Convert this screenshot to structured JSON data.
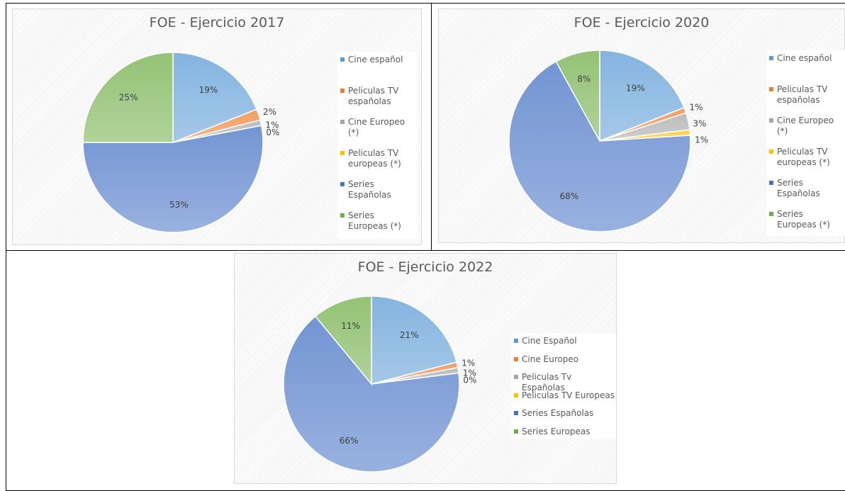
{
  "chart_data": [
    {
      "type": "pie",
      "title": "FOE - Ejercicio 2017",
      "categories": [
        "Cine español",
        "Peliculas TV españolas",
        "Cine Europeo (*)",
        "Peliculas TV europeas (*)",
        "Series Españolas",
        "Series Europeas (*)"
      ],
      "values": [
        19,
        2,
        1,
        0,
        53,
        25
      ],
      "value_labels": [
        "19%",
        "2%",
        "1%",
        "0%",
        "53%",
        "25%"
      ],
      "colors": [
        "#5b9bd5",
        "#ed7d31",
        "#a5a5a5",
        "#ffc000",
        "#4472c4",
        "#70ad47"
      ]
    },
    {
      "type": "pie",
      "title": "FOE - Ejercicio 2020",
      "categories": [
        "Cine español",
        "Peliculas TV españolas",
        "Cine Europeo (*)",
        "Peliculas TV europeas (*)",
        "Series Españolas",
        "Series Europeas (*)"
      ],
      "values": [
        19,
        1,
        3,
        1,
        68,
        8
      ],
      "value_labels": [
        "19%",
        "1%",
        "3%",
        "1%",
        "68%",
        "8%"
      ],
      "colors": [
        "#5b9bd5",
        "#ed7d31",
        "#a5a5a5",
        "#ffc000",
        "#4472c4",
        "#70ad47"
      ]
    },
    {
      "type": "pie",
      "title": "FOE - Ejercicio 2022",
      "categories": [
        "Cine Español",
        "Cine Europeo",
        "Peliculas Tv Españolas",
        "Peliculas TV Europeas",
        "Series Españolas",
        "Series Europeas"
      ],
      "values": [
        21,
        1,
        1,
        0,
        66,
        11
      ],
      "value_labels": [
        "21%",
        "1%",
        "1%",
        "0%",
        "66%",
        "11%"
      ],
      "colors": [
        "#5b9bd5",
        "#ed7d31",
        "#a5a5a5",
        "#ffc000",
        "#4472c4",
        "#70ad47"
      ]
    }
  ]
}
